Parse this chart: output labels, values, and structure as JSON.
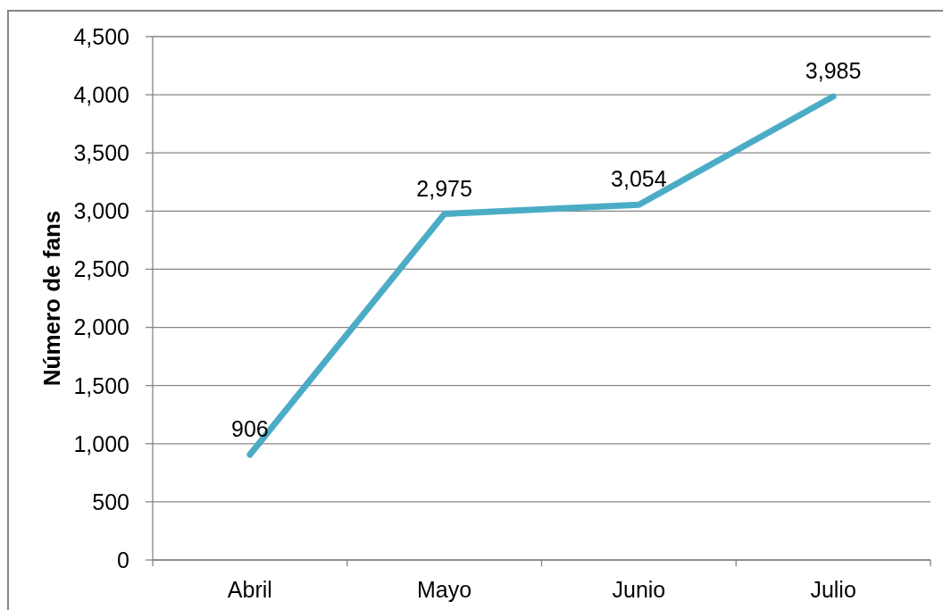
{
  "chart_data": {
    "type": "line",
    "ylabel": "Número de fans",
    "categories": [
      "Abril",
      "Mayo",
      "Junio",
      "Julio"
    ],
    "series": [
      {
        "color": "#4bacc6",
        "values": [
          906,
          2975,
          3054,
          3985
        ],
        "value_labels": [
          "906",
          "2,975",
          "3,054",
          "3,985"
        ]
      }
    ],
    "ylim": [
      0,
      4500
    ],
    "yticks": [
      0,
      500,
      {
        "value": 1000,
        "label": "1,000"
      },
      {
        "value": 1500,
        "label": "1,500"
      },
      {
        "value": 2000,
        "label": "2,000"
      },
      {
        "value": 2500,
        "label": "2,500"
      },
      {
        "value": 3000,
        "label": "3,000"
      },
      {
        "value": 3500,
        "label": "3,500"
      },
      {
        "value": 4000,
        "label": "4,000"
      },
      {
        "value": 4500,
        "label": "4,500"
      }
    ],
    "grid": "y",
    "marker": "none",
    "line_style": "solid"
  }
}
